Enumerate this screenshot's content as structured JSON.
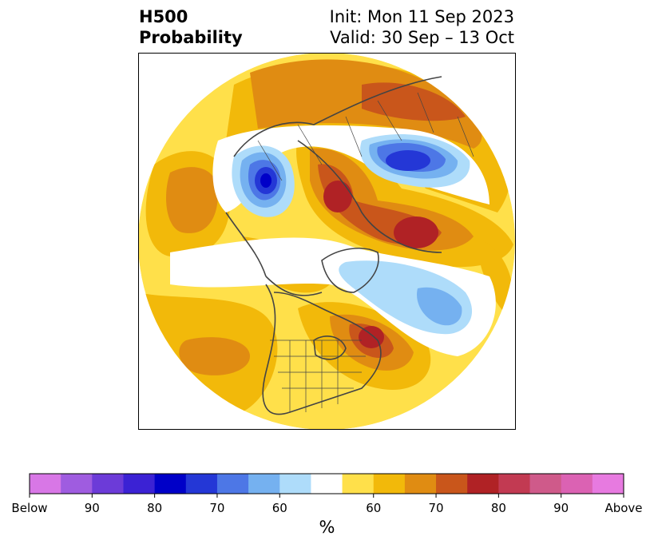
{
  "header": {
    "title_line1": "H500",
    "title_line2": "Probability",
    "init_label": "Init: Mon 11 Sep 2023",
    "valid_label": "Valid: 30 Sep – 13 Oct"
  },
  "colorbar": {
    "units": "%",
    "tick_labels": [
      "Below",
      "90",
      "80",
      "70",
      "60",
      "60",
      "70",
      "80",
      "90",
      "Above"
    ],
    "colors": [
      "#d877e6",
      "#9f5ce0",
      "#6c3bd8",
      "#3b22d4",
      "#0000c8",
      "#2437d6",
      "#4d77e6",
      "#75b1f0",
      "#aedcfa",
      "#ffffff",
      "#ffe04a",
      "#f2b90a",
      "#e08c12",
      "#c9561b",
      "#b02225",
      "#c23a52",
      "#cf5a8a",
      "#db62b3",
      "#e77ae0"
    ]
  },
  "map": {
    "projection": "north-polar-stereographic",
    "variable": "500 hPa geopotential height anomaly probability"
  }
}
